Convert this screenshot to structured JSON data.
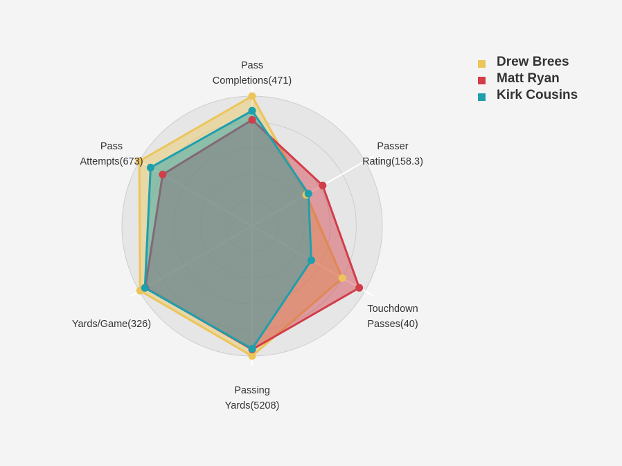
{
  "chart_data": {
    "type": "radar",
    "axes": [
      {
        "label": [
          "Pass",
          "Completions(471)"
        ],
        "max": 471
      },
      {
        "label": [
          "Passer",
          "Rating(158.3)"
        ],
        "max": 158.3
      },
      {
        "label": [
          "Touchdown",
          "Passes(40)"
        ],
        "max": 40
      },
      {
        "label": [
          "Passing",
          "Yards(5208)"
        ],
        "max": 5208
      },
      {
        "label": [
          "Yards/Game(326)"
        ],
        "max": 326
      },
      {
        "label": [
          "Pass",
          "Attempts(673)"
        ],
        "max": 673
      }
    ],
    "series": [
      {
        "name": "Drew Brees",
        "color": "#ecc55a",
        "values": [
          471,
          76,
          32,
          5208,
          324,
          673
        ]
      },
      {
        "name": "Matt Ryan",
        "color": "#d23d4a",
        "values": [
          385,
          99,
          38,
          4944,
          309,
          534
        ]
      },
      {
        "name": "Kirk Cousins",
        "color": "#1e9fae",
        "values": [
          418,
          79,
          21,
          4917,
          310,
          606
        ]
      }
    ],
    "grid_levels": 5,
    "legend_position": "top-right"
  }
}
